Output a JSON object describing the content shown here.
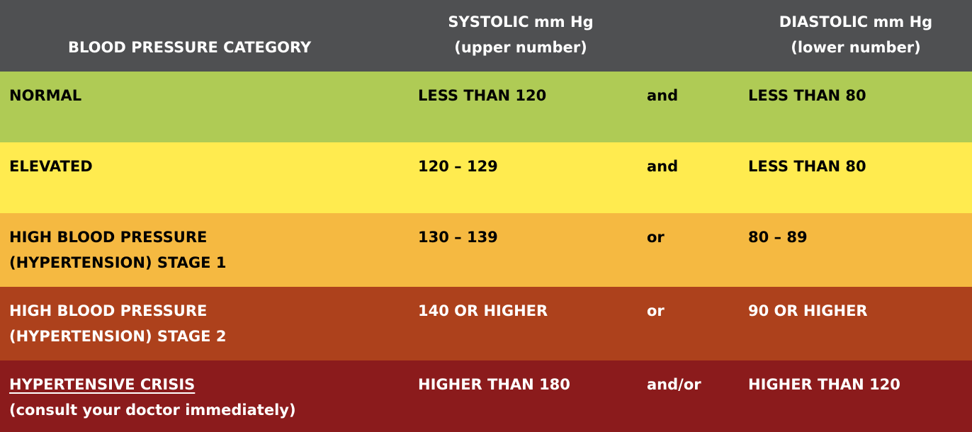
{
  "colors": {
    "header_bg": "#4f5052",
    "normal": "#afcb55",
    "elevated": "#ffeb4f",
    "stage1": "#f5b941",
    "stage2": "#ad411c",
    "crisis": "#8b1b1c"
  },
  "header": {
    "category": "BLOOD PRESSURE CATEGORY",
    "systolic_line1": "SYSTOLIC mm Hg",
    "systolic_line2": "(upper number)",
    "diastolic_line1": "DIASTOLIC mm Hg",
    "diastolic_line2": "(lower number)"
  },
  "rows": [
    {
      "category_line1": "NORMAL",
      "category_line2": "",
      "systolic": "LESS THAN 120",
      "conjunction": "and",
      "diastolic": "LESS THAN 80"
    },
    {
      "category_line1": "ELEVATED",
      "category_line2": "",
      "systolic": "120 – 129",
      "conjunction": "and",
      "diastolic": "LESS THAN 80"
    },
    {
      "category_line1": "HIGH BLOOD PRESSURE",
      "category_line2": "(HYPERTENSION) STAGE 1",
      "systolic": "130 – 139",
      "conjunction": "or",
      "diastolic": "80 – 89"
    },
    {
      "category_line1": "HIGH BLOOD PRESSURE",
      "category_line2": "(HYPERTENSION) STAGE 2",
      "systolic": "140 OR HIGHER",
      "conjunction": "or",
      "diastolic": "90 OR HIGHER"
    },
    {
      "category_line1": "HYPERTENSIVE CRISIS",
      "category_line2": "(consult your doctor immediately)",
      "systolic": "HIGHER THAN 180",
      "conjunction": "and/or",
      "diastolic": "HIGHER THAN 120"
    }
  ]
}
